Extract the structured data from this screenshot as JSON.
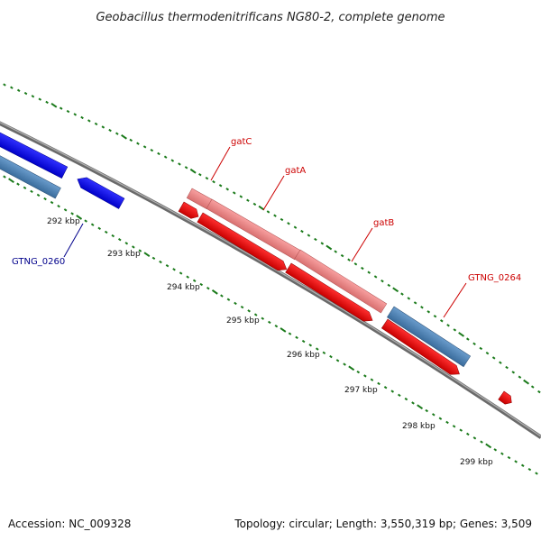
{
  "title": "Geobacillus thermodenitrificans NG80-2, complete genome",
  "footer": {
    "accession": "Accession: NC_009328",
    "summary": "Topology: circular; Length: 3,550,319 bp; Genes: 3,509"
  },
  "colors": {
    "backbone": "#808080",
    "tick": "#1a7a1a",
    "forward_gene": "#0000ff",
    "forward_gene_light": "#4a7fb5",
    "reverse_gene": "#ff0000",
    "highlight_gene": "#f08080",
    "label_red": "#cc0000",
    "label_blue": "#00008b"
  },
  "scale_labels": [
    {
      "kbp": 292,
      "text": "292 kbp"
    },
    {
      "kbp": 293,
      "text": "293 kbp"
    },
    {
      "kbp": 294,
      "text": "294 kbp"
    },
    {
      "kbp": 295,
      "text": "295 kbp"
    },
    {
      "kbp": 296,
      "text": "296 kbp"
    },
    {
      "kbp": 297,
      "text": "297 kbp"
    },
    {
      "kbp": 298,
      "text": "298 kbp"
    },
    {
      "kbp": 299,
      "text": "299 kbp"
    }
  ],
  "gene_labels": [
    {
      "name": "gatC",
      "color": "label_red"
    },
    {
      "name": "gatA",
      "color": "label_red"
    },
    {
      "name": "gatB",
      "color": "label_red"
    },
    {
      "name": "GTNG_0264",
      "color": "label_red"
    },
    {
      "name": "GTNG_0260",
      "color": "label_blue"
    }
  ]
}
